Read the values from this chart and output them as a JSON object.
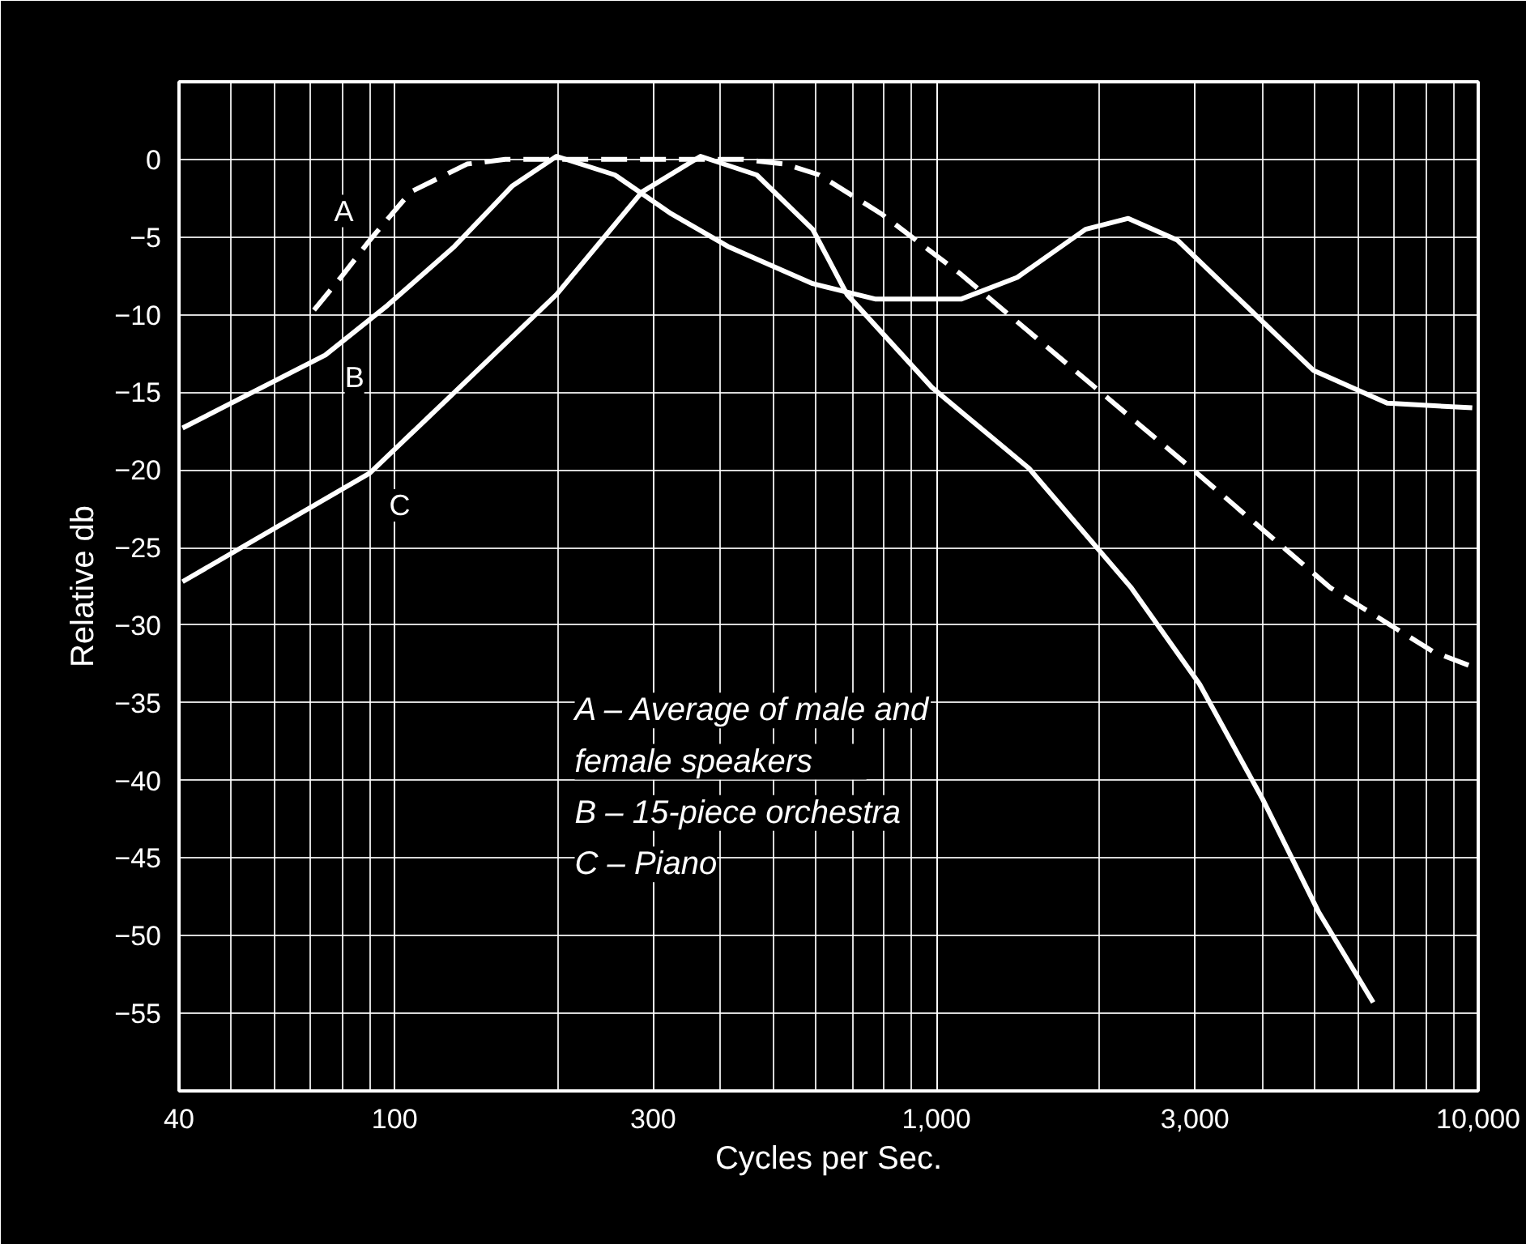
{
  "chart_data": {
    "type": "line",
    "xlabel": "Cycles per Sec.",
    "ylabel": "Relative db",
    "log": "x",
    "grid": true,
    "marker": "none",
    "xlim": [
      40,
      10000
    ],
    "ylim": [
      -60,
      5
    ],
    "xticks": [
      40,
      100,
      300,
      {
        "value": 1000,
        "label": "1,000"
      },
      {
        "value": 3000,
        "label": "3,000"
      },
      {
        "value": 10000,
        "label": "10,000"
      }
    ],
    "yticks": [
      0,
      -5,
      -10,
      -15,
      -20,
      -25,
      -30,
      -35,
      -40,
      -45,
      -50,
      -55
    ],
    "series": [
      {
        "name": "A",
        "color": "#ffffff",
        "line_style": "dashed",
        "x": [
          71,
          80,
          90,
          107,
          136,
          160,
          300,
          440,
          526,
          608,
          791,
          1110,
          1845,
          2910,
          5340,
          8250,
          9630
        ],
        "values": [
          -9.7,
          -7.5,
          -5.2,
          -2.1,
          -0.3,
          0,
          0,
          0,
          -0.3,
          -1.0,
          -3.5,
          -7.4,
          -13.9,
          -19.7,
          -27.6,
          -31.7,
          -32.6
        ]
      },
      {
        "name": "B",
        "color": "#ffffff",
        "line_style": "solid",
        "x": [
          40.6,
          74.5,
          97,
          129,
          165,
          199,
          255,
          324,
          412,
          591,
          773,
          1110,
          1410,
          1885,
          2260,
          2785,
          3720,
          4970,
          6790,
          9750
        ],
        "values": [
          -17.3,
          -12.6,
          -9.4,
          -5.6,
          -1.7,
          0.2,
          -1.0,
          -3.5,
          -5.6,
          -8.0,
          -9.0,
          -9.0,
          -7.6,
          -4.5,
          -3.8,
          -5.2,
          -9.4,
          -13.6,
          -15.7,
          -16.0
        ]
      },
      {
        "name": "C",
        "color": "#ffffff",
        "line_style": "solid",
        "x": [
          40.6,
          90,
          129,
          199,
          286,
          367,
          466,
          591,
          684,
          982,
          1482,
          2290,
          3060,
          4000,
          5080,
          6400
        ],
        "values": [
          -27.2,
          -20.2,
          -15.0,
          -8.7,
          -2.1,
          0.2,
          -1.0,
          -4.5,
          -8.7,
          -14.7,
          -19.9,
          -27.6,
          -33.8,
          -41.2,
          -48.5,
          -54.3
        ]
      }
    ],
    "annotations": [
      "A – Average of male and\n      female speakers\nB – 15-piece orchestra\nC – Piano"
    ]
  }
}
